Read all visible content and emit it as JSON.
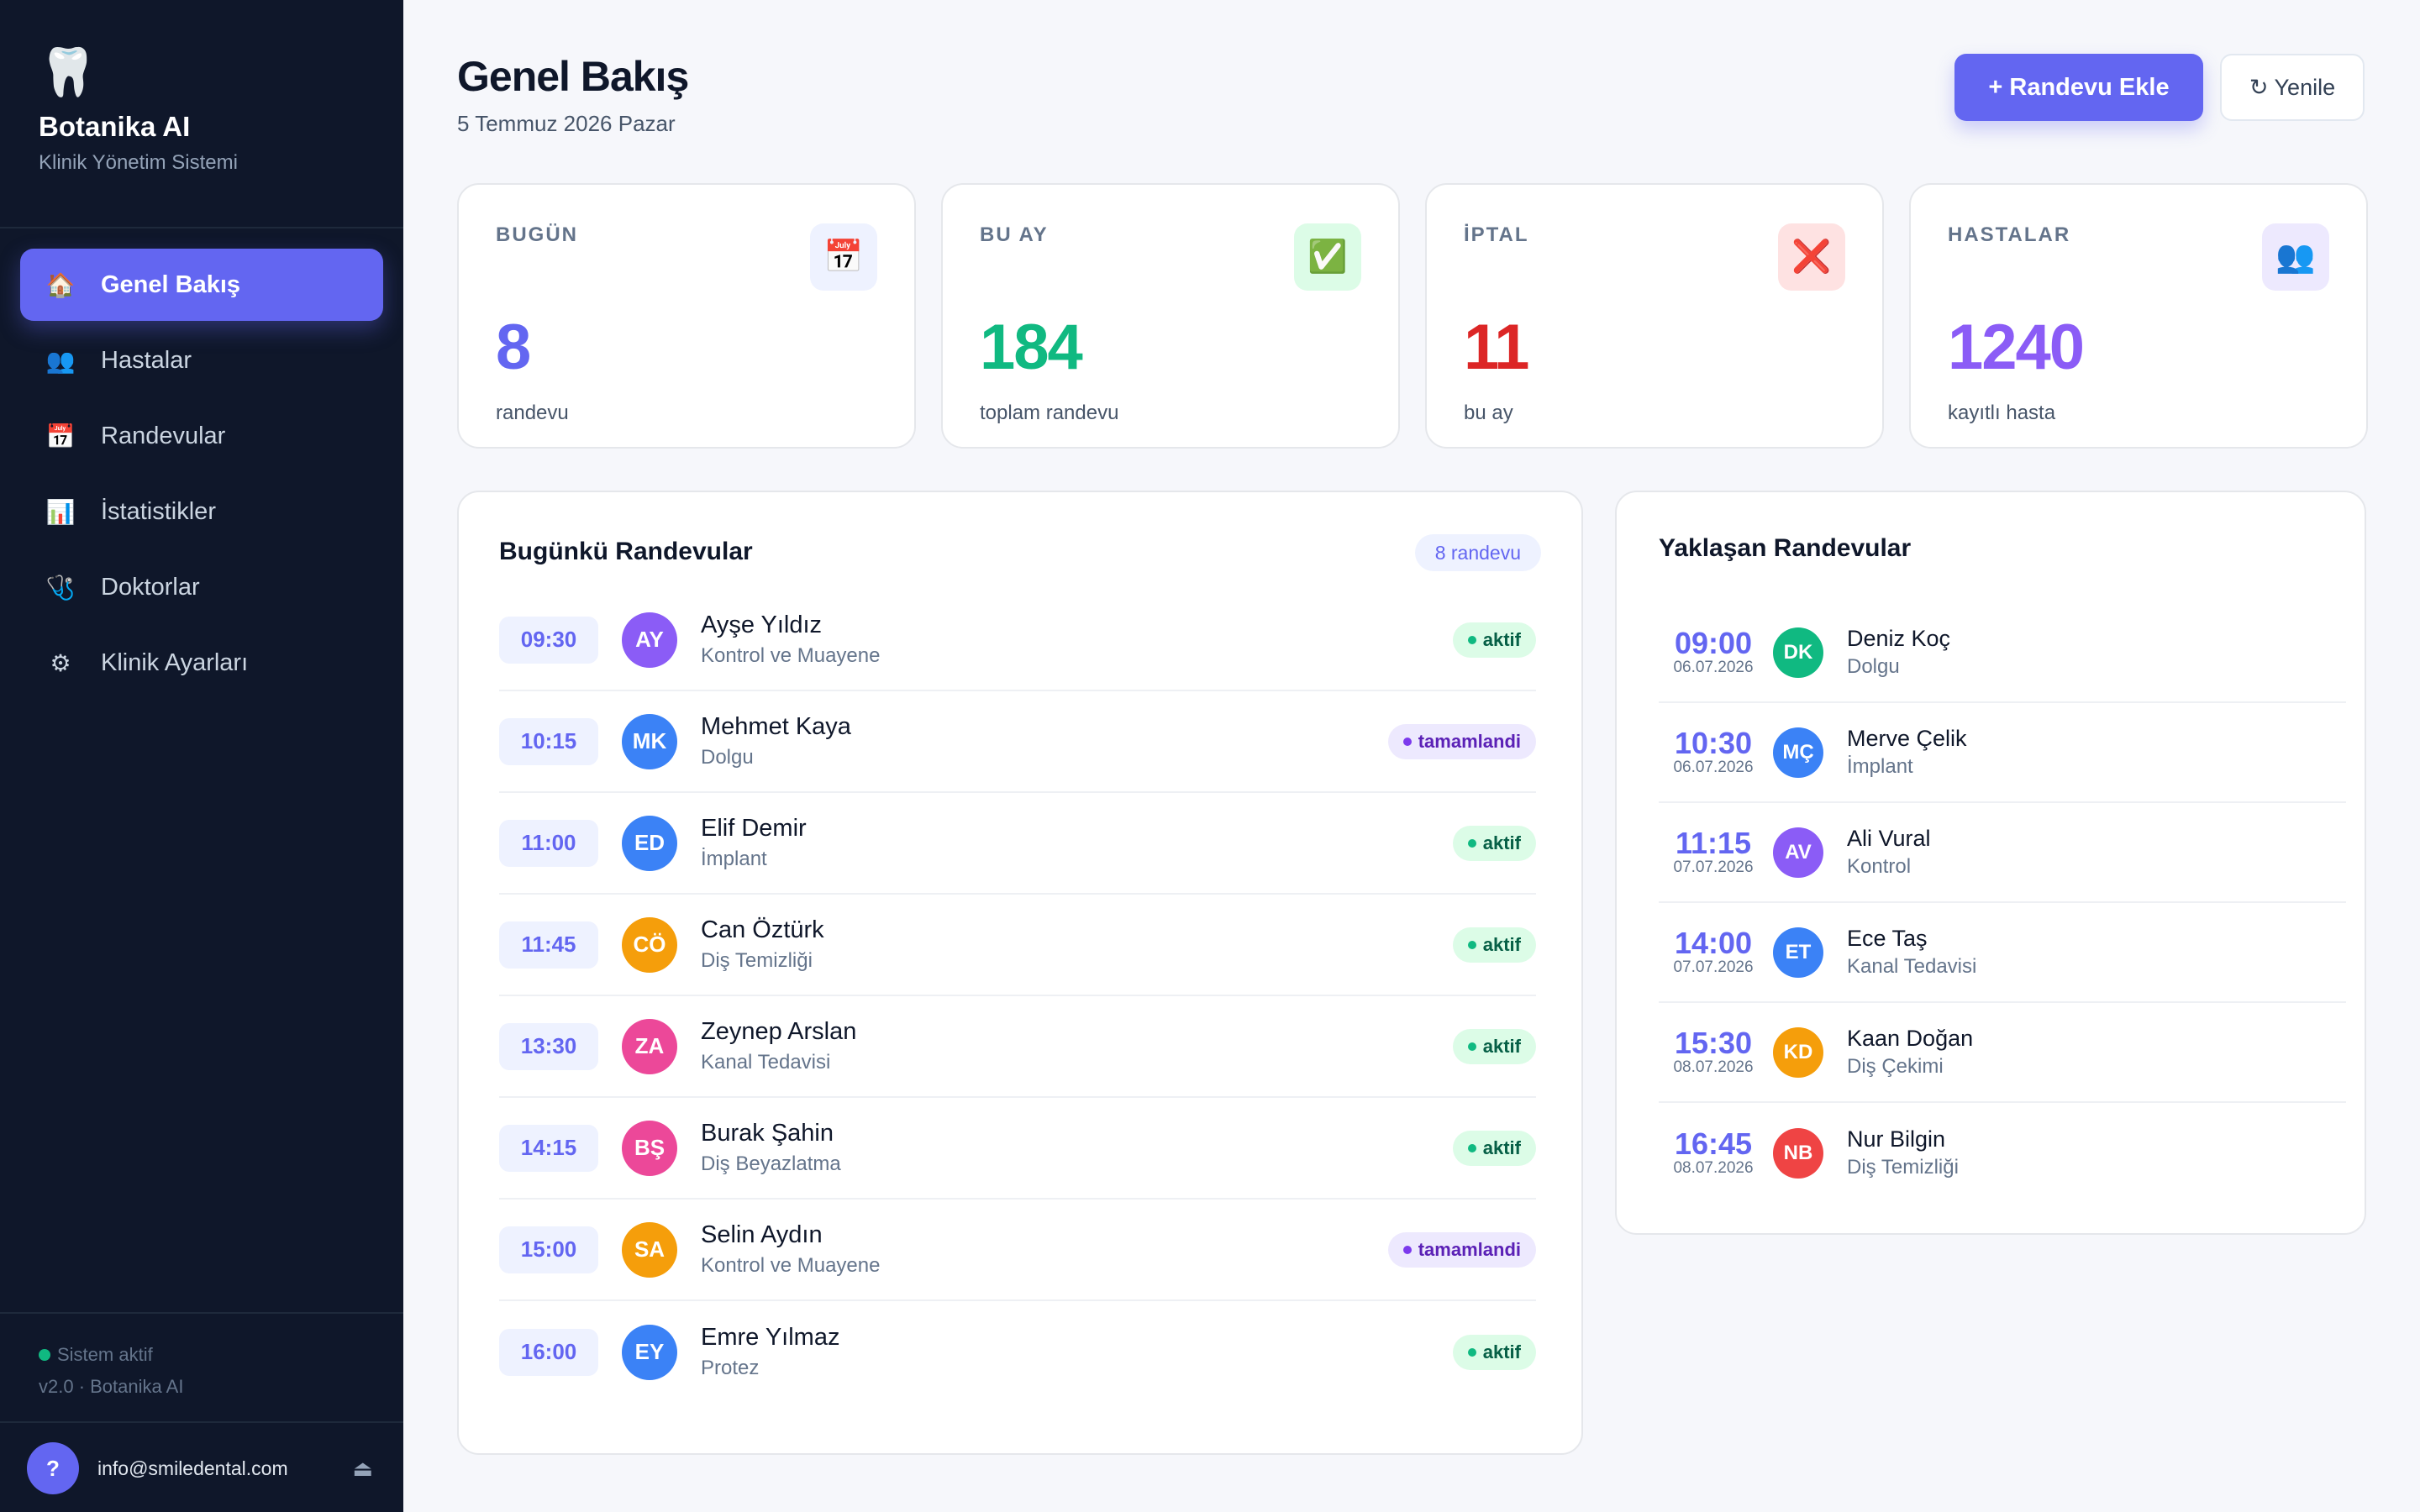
{
  "brand": {
    "icon": "tooth-icon",
    "name": "Botanika AI",
    "subtitle": "Klinik Yönetim Sistemi"
  },
  "nav": [
    {
      "label": "Genel Bakış",
      "icon": "house-icon",
      "glyph": "🏠",
      "active": true
    },
    {
      "label": "Hastalar",
      "icon": "users-icon",
      "glyph": "👥",
      "active": false
    },
    {
      "label": "Randevular",
      "icon": "calendar-icon",
      "glyph": "📅",
      "active": false
    },
    {
      "label": "İstatistikler",
      "icon": "bar-chart-icon",
      "glyph": "📊",
      "active": false
    },
    {
      "label": "Doktorlar",
      "icon": "stethoscope-icon",
      "glyph": "🩺",
      "active": false
    },
    {
      "label": "Klinik Ayarları",
      "icon": "gear-icon",
      "glyph": "⚙",
      "active": false
    }
  ],
  "system": {
    "status": "Sistem aktif",
    "version": "v2.0 · Botanika AI"
  },
  "user": {
    "avatar": "?",
    "email": "info@smiledental.com",
    "action_icon": "eject-icon"
  },
  "header": {
    "title": "Genel Bakış",
    "date": "5 Temmuz 2026 Pazar",
    "add_button": "+ Randevu Ekle",
    "refresh_button": "↻ Yenile"
  },
  "stats": [
    {
      "label": "BUGÜN",
      "value": "8",
      "caption": "randevu",
      "icon": "calendar-icon",
      "glyph": "📅",
      "color": "#6366f1",
      "icon_bg": "#eef2ff"
    },
    {
      "label": "BU AY",
      "value": "184",
      "caption": "toplam randevu",
      "icon": "check-icon",
      "glyph": "✅",
      "color": "#10b981",
      "icon_bg": "#dcfce7"
    },
    {
      "label": "İPTAL",
      "value": "11",
      "caption": "bu ay",
      "icon": "cross-icon",
      "glyph": "❌",
      "color": "#dc2626",
      "icon_bg": "#fee2e2"
    },
    {
      "label": "HASTALAR",
      "value": "1240",
      "caption": "kayıtlı hasta",
      "icon": "users-icon",
      "glyph": "👥",
      "color": "#8b5cf6",
      "icon_bg": "#ede9fe"
    }
  ],
  "today": {
    "title": "Bugünkü Randevular",
    "count": "8 randevu",
    "rows": [
      {
        "time": "09:30",
        "initials": "AY",
        "name": "Ayşe Yıldız",
        "service": "Kontrol ve Muayene",
        "status": "aktif",
        "color": "#8b5cf6"
      },
      {
        "time": "10:15",
        "initials": "MK",
        "name": "Mehmet Kaya",
        "service": "Dolgu",
        "status": "tamamlandi",
        "color": "#3b82f6"
      },
      {
        "time": "11:00",
        "initials": "ED",
        "name": "Elif Demir",
        "service": "İmplant",
        "status": "aktif",
        "color": "#3b82f6"
      },
      {
        "time": "11:45",
        "initials": "CÖ",
        "name": "Can Öztürk",
        "service": "Diş Temizliği",
        "status": "aktif",
        "color": "#f59e0b"
      },
      {
        "time": "13:30",
        "initials": "ZA",
        "name": "Zeynep Arslan",
        "service": "Kanal Tedavisi",
        "status": "aktif",
        "color": "#ec4899"
      },
      {
        "time": "14:15",
        "initials": "BŞ",
        "name": "Burak Şahin",
        "service": "Diş Beyazlatma",
        "status": "aktif",
        "color": "#ec4899"
      },
      {
        "time": "15:00",
        "initials": "SA",
        "name": "Selin Aydın",
        "service": "Kontrol ve Muayene",
        "status": "tamamlandi",
        "color": "#f59e0b"
      },
      {
        "time": "16:00",
        "initials": "EY",
        "name": "Emre Yılmaz",
        "service": "Protez",
        "status": "aktif",
        "color": "#3b82f6"
      }
    ]
  },
  "upcoming": {
    "title": "Yaklaşan Randevular",
    "rows": [
      {
        "time": "09:00",
        "date": "06.07.2026",
        "initials": "DK",
        "name": "Deniz Koç",
        "service": "Dolgu",
        "color": "#10b981"
      },
      {
        "time": "10:30",
        "date": "06.07.2026",
        "initials": "MÇ",
        "name": "Merve Çelik",
        "service": "İmplant",
        "color": "#3b82f6"
      },
      {
        "time": "11:15",
        "date": "07.07.2026",
        "initials": "AV",
        "name": "Ali Vural",
        "service": "Kontrol",
        "color": "#8b5cf6"
      },
      {
        "time": "14:00",
        "date": "07.07.2026",
        "initials": "ET",
        "name": "Ece Taş",
        "service": "Kanal Tedavisi",
        "color": "#3b82f6"
      },
      {
        "time": "15:30",
        "date": "08.07.2026",
        "initials": "KD",
        "name": "Kaan Doğan",
        "service": "Diş Çekimi",
        "color": "#f59e0b"
      },
      {
        "time": "16:45",
        "date": "08.07.2026",
        "initials": "NB",
        "name": "Nur Bilgin",
        "service": "Diş Temizliği",
        "color": "#ef4444"
      }
    ]
  }
}
